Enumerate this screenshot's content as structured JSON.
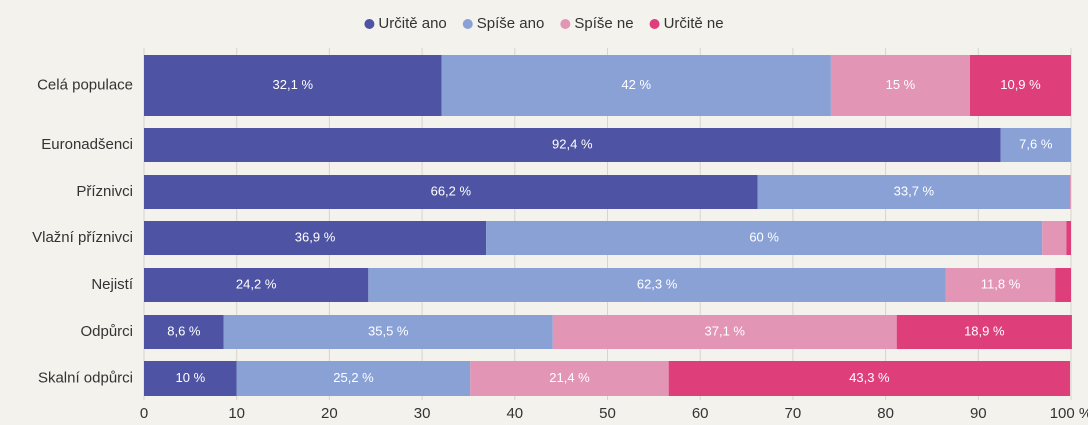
{
  "chart_data": {
    "type": "stacked-bar-horizontal",
    "categories": [
      "Celá populace",
      "Euronadšenci",
      "Příznivci",
      "Vlažní příznivci",
      "Nejistí",
      "Odpůrci",
      "Skalní odpůrci"
    ],
    "series": [
      {
        "name": "Určitě ano",
        "color": "#4e54a3",
        "values": [
          32.1,
          92.4,
          66.2,
          36.9,
          24.2,
          8.6,
          10
        ],
        "value_labels": [
          "32,1 %",
          "92,4 %",
          "66,2 %",
          "36,9 %",
          "24,2 %",
          "8,6 %",
          "10 %"
        ]
      },
      {
        "name": "Spíše ano",
        "color": "#8aa1d6",
        "values": [
          42,
          7.6,
          33.7,
          60,
          62.3,
          35.5,
          25.2
        ],
        "value_labels": [
          "42 %",
          "7,6 %",
          "33,7 %",
          "60 %",
          "62,3 %",
          "35,5 %",
          "25,2 %"
        ]
      },
      {
        "name": "Spíše ne",
        "color": "#e395b5",
        "values": [
          15,
          0,
          0.1,
          2.6,
          11.8,
          37.1,
          21.4
        ],
        "value_labels": [
          "15 %",
          null,
          null,
          null,
          "11,8 %",
          "37,1 %",
          "21,4 %"
        ]
      },
      {
        "name": "Určitě ne",
        "color": "#de3f7a",
        "values": [
          10.9,
          0,
          0,
          0.5,
          1.7,
          18.9,
          43.3
        ],
        "value_labels": [
          "10,9 %",
          null,
          null,
          null,
          null,
          "18,9 %",
          "43,3 %"
        ]
      }
    ],
    "xlim": [
      0,
      100
    ],
    "xticks": [
      0,
      10,
      20,
      30,
      40,
      50,
      60,
      70,
      80,
      90,
      {
        "value": 100,
        "label": "100 %"
      }
    ],
    "grid": true,
    "legend": "top"
  }
}
